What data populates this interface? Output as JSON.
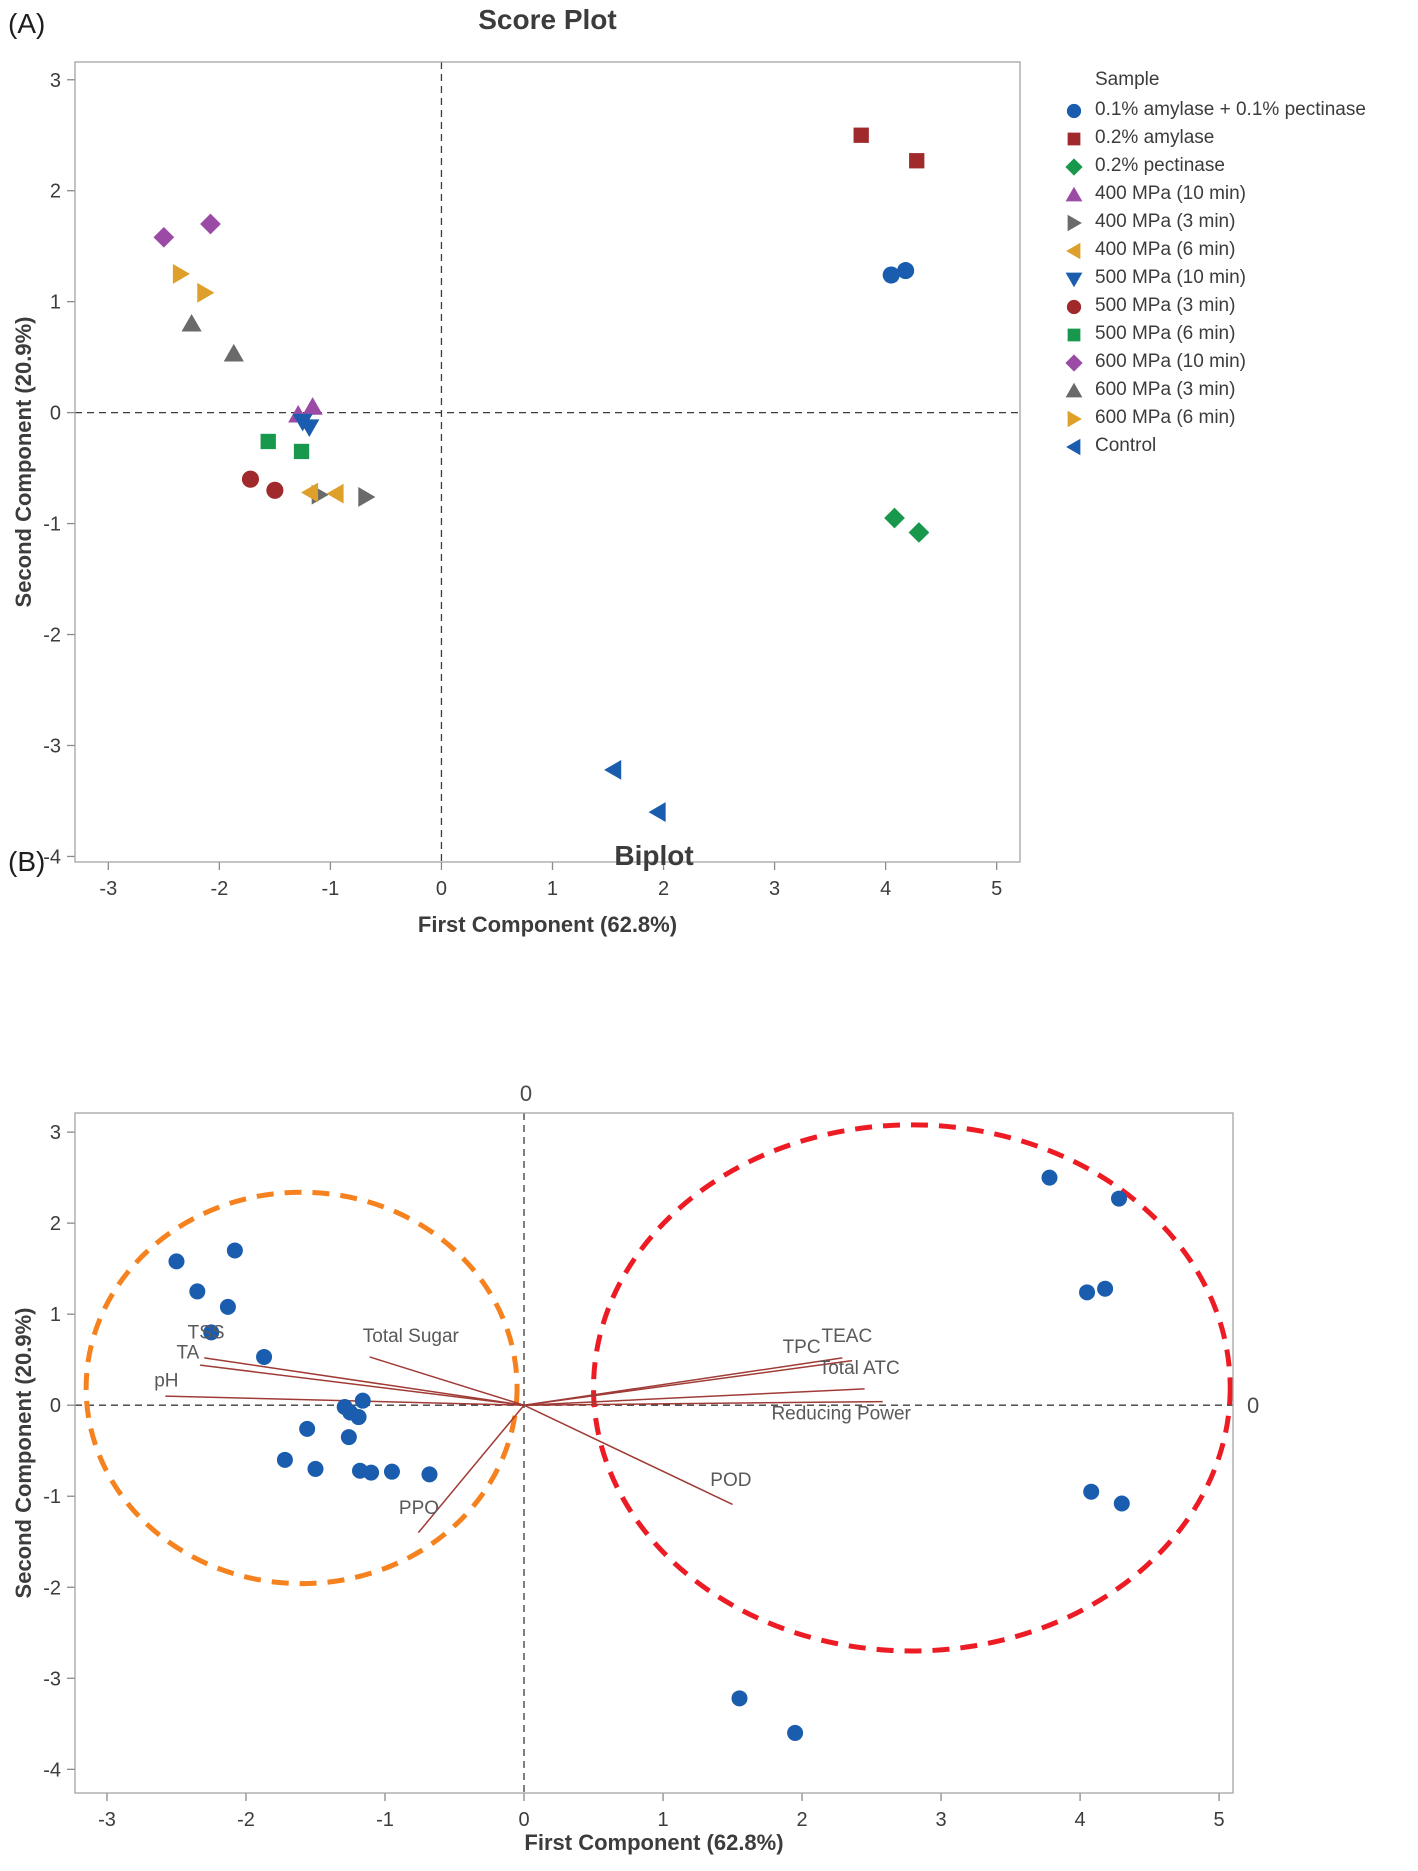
{
  "figure": {
    "panel_a_label": "(A)",
    "panel_b_label": "(B)"
  },
  "chart_data": [
    {
      "type": "scatter",
      "title": "Score Plot",
      "xlabel": "First Component (62.8%)",
      "ylabel": "Second Component (20.9%)",
      "xlim": [
        -3.3,
        5.21
      ],
      "ylim": [
        -4.05,
        3.16
      ],
      "x_ticks": [
        -3,
        -2,
        -1,
        0,
        1,
        2,
        3,
        4,
        5
      ],
      "y_ticks": [
        3,
        2,
        1,
        0,
        -1,
        -2,
        -3,
        -4
      ],
      "grid": false,
      "ref_line_x": 0,
      "ref_line_y": 0,
      "legend_position": "right",
      "legend_title": "Sample",
      "series": [
        {
          "name": "0.1% amylase + 0.1% pectinase",
          "marker": "circle",
          "color": "#1A5CAD",
          "points": [
            [
              4.05,
              1.24
            ],
            [
              4.18,
              1.28
            ]
          ]
        },
        {
          "name": "0.2% amylase",
          "marker": "square",
          "color": "#A0292B",
          "points": [
            [
              3.78,
              2.5
            ],
            [
              4.28,
              2.27
            ]
          ]
        },
        {
          "name": "0.2% pectinase",
          "marker": "diamond",
          "color": "#18984C",
          "points": [
            [
              4.08,
              -0.95
            ],
            [
              4.3,
              -1.08
            ]
          ]
        },
        {
          "name": "400 MPa (10 min)",
          "marker": "triangle-up",
          "color": "#9B4BA6",
          "points": [
            [
              -1.16,
              0.05
            ],
            [
              -1.29,
              -0.02
            ]
          ]
        },
        {
          "name": "400 MPa (3 min)",
          "marker": "triangle-right",
          "color": "#6A6A6A",
          "points": [
            [
              -1.1,
              -0.74
            ],
            [
              -0.68,
              -0.76
            ]
          ]
        },
        {
          "name": "400 MPa (6 min)",
          "marker": "triangle-left",
          "color": "#DEA02B",
          "points": [
            [
              -1.18,
              -0.72
            ],
            [
              -0.95,
              -0.73
            ]
          ]
        },
        {
          "name": "500 MPa (10 min)",
          "marker": "triangle-down",
          "color": "#1A5CAD",
          "points": [
            [
              -1.25,
              -0.08
            ],
            [
              -1.19,
              -0.13
            ]
          ]
        },
        {
          "name": "500 MPa (3 min)",
          "marker": "circle",
          "color": "#A0292B",
          "points": [
            [
              -1.72,
              -0.6
            ],
            [
              -1.5,
              -0.7
            ]
          ]
        },
        {
          "name": "500 MPa (6 min)",
          "marker": "square",
          "color": "#18984C",
          "points": [
            [
              -1.56,
              -0.26
            ],
            [
              -1.26,
              -0.35
            ]
          ]
        },
        {
          "name": "600 MPa (10 min)",
          "marker": "diamond",
          "color": "#9B4BA6",
          "points": [
            [
              -2.5,
              1.58
            ],
            [
              -2.08,
              1.7
            ]
          ]
        },
        {
          "name": "600 MPa (3 min)",
          "marker": "triangle-up",
          "color": "#6A6A6A",
          "points": [
            [
              -2.25,
              0.8
            ],
            [
              -1.87,
              0.53
            ]
          ]
        },
        {
          "name": "600 MPa (6 min)",
          "marker": "triangle-right",
          "color": "#DEA02B",
          "points": [
            [
              -2.35,
              1.25
            ],
            [
              -2.13,
              1.08
            ]
          ]
        },
        {
          "name": "Control",
          "marker": "triangle-left",
          "color": "#1A5CAD",
          "points": [
            [
              1.55,
              -3.22
            ],
            [
              1.95,
              -3.6
            ]
          ]
        }
      ]
    },
    {
      "type": "biplot",
      "title": "Biplot",
      "xlabel": "First Component (62.8%)",
      "ylabel": "Second Component (20.9%)",
      "xlim": [
        -3.23,
        5.1
      ],
      "ylim": [
        -4.26,
        3.21
      ],
      "x_ticks": [
        -3,
        -2,
        -1,
        0,
        1,
        2,
        3,
        4,
        5
      ],
      "y_ticks": [
        3,
        2,
        1,
        0,
        -1,
        -2,
        -3,
        -4
      ],
      "grid": false,
      "ref_line_x": 0,
      "ref_line_y": 0,
      "zero_label_top": "0",
      "zero_label_right": "0",
      "point_color": "#1A5CAD",
      "points": [
        [
          4.05,
          1.24
        ],
        [
          4.18,
          1.28
        ],
        [
          3.78,
          2.5
        ],
        [
          4.28,
          2.27
        ],
        [
          4.08,
          -0.95
        ],
        [
          4.3,
          -1.08
        ],
        [
          -1.16,
          0.05
        ],
        [
          -1.29,
          -0.02
        ],
        [
          -1.1,
          -0.74
        ],
        [
          -0.68,
          -0.76
        ],
        [
          -1.18,
          -0.72
        ],
        [
          -0.95,
          -0.73
        ],
        [
          -1.25,
          -0.08
        ],
        [
          -1.19,
          -0.13
        ],
        [
          -1.72,
          -0.6
        ],
        [
          -1.5,
          -0.7
        ],
        [
          -1.56,
          -0.26
        ],
        [
          -1.26,
          -0.35
        ],
        [
          -2.5,
          1.58
        ],
        [
          -2.08,
          1.7
        ],
        [
          -2.25,
          0.8
        ],
        [
          -1.87,
          0.53
        ],
        [
          -2.35,
          1.25
        ],
        [
          -2.13,
          1.08
        ],
        [
          1.55,
          -3.22
        ],
        [
          1.95,
          -3.6
        ]
      ],
      "vector_color": "#A03B36",
      "vectors": [
        {
          "label": "TSS",
          "tip": [
            -2.3,
            0.52
          ],
          "label_pos": [
            -2.42,
            0.8
          ]
        },
        {
          "label": "TA",
          "tip": [
            -2.33,
            0.44
          ],
          "label_pos": [
            -2.5,
            0.58
          ]
        },
        {
          "label": "pH",
          "tip": [
            -2.58,
            0.1
          ],
          "label_pos": [
            -2.66,
            0.27
          ]
        },
        {
          "label": "Total Sugar",
          "tip": [
            -1.11,
            0.53
          ],
          "label_pos": [
            -1.16,
            0.76
          ]
        },
        {
          "label": "PPO",
          "tip": [
            -0.76,
            -1.4
          ],
          "label_pos": [
            -0.9,
            -1.13
          ]
        },
        {
          "label": "TPC",
          "tip": [
            2.29,
            0.52
          ],
          "label_pos": [
            1.86,
            0.64
          ]
        },
        {
          "label": "TEAC",
          "tip": [
            2.36,
            0.49
          ],
          "label_pos": [
            2.14,
            0.76
          ]
        },
        {
          "label": "Total ATC",
          "tip": [
            2.45,
            0.18
          ],
          "label_pos": [
            2.12,
            0.41
          ]
        },
        {
          "label": "Reducing Power",
          "tip": [
            2.58,
            0.04
          ],
          "label_pos": [
            1.78,
            -0.09
          ]
        },
        {
          "label": "POD",
          "tip": [
            1.5,
            -1.09
          ],
          "label_pos": [
            1.34,
            -0.82
          ]
        }
      ],
      "ellipses": [
        {
          "cx": -1.6,
          "cy": 0.19,
          "rx": 1.55,
          "ry": 2.15,
          "color": "#F5821F"
        },
        {
          "cx": 2.79,
          "cy": 0.19,
          "rx": 2.29,
          "ry": 2.89,
          "color": "#ED1C24"
        }
      ]
    }
  ],
  "style_colors": {
    "plot_border": "#A3A3A3",
    "tick": "#8A8A8A",
    "ref_line": "#3B3B3B",
    "tick_text": "#3C3C3C",
    "vector_text": "#595959",
    "zero_text": "#4A4A4A"
  }
}
